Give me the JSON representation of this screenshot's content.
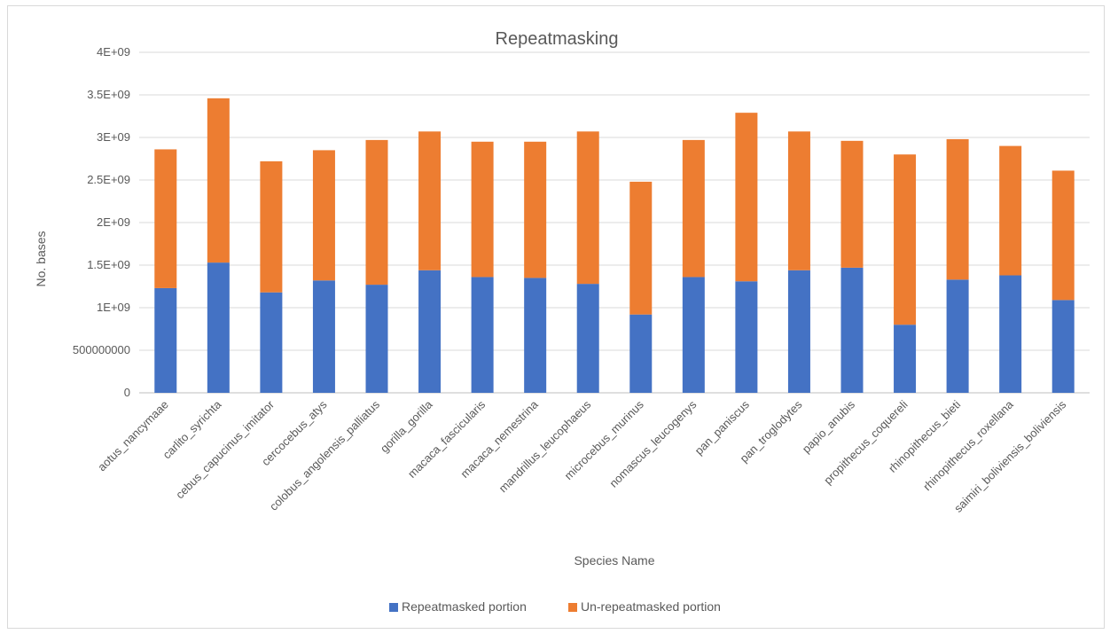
{
  "chart_data": {
    "type": "bar",
    "stacked": true,
    "title": "Repeatmasking",
    "xlabel": "Species Name",
    "ylabel": "No. bases",
    "ylim": [
      0,
      4000000000
    ],
    "y_ticks": [
      0,
      500000000,
      1000000000,
      1500000000,
      2000000000,
      2500000000,
      3000000000,
      3500000000,
      4000000000
    ],
    "y_tick_labels": [
      "0",
      "500000000",
      "1E+09",
      "1.5E+09",
      "2E+09",
      "2.5E+09",
      "3E+09",
      "3.5E+09",
      "4E+09"
    ],
    "grid": true,
    "legend_position": "bottom",
    "categories": [
      "aotus_nancymaae",
      "carlito_syrichta",
      "cebus_capucinus_imitator",
      "cercocebus_atys",
      "colobus_angolensis_palliatus",
      "gorilla_gorilla",
      "macaca_fascicularis",
      "macaca_nemestrina",
      "mandrillus_leucophaeus",
      "microcebus_murinus",
      "nomascus_leucogenys",
      "pan_paniscus",
      "pan_troglodytes",
      "papio_anubis",
      "propithecus_coquereli",
      "rhinopithecus_bieti",
      "rhinopithecus_roxellana",
      "saimiri_boliviensis_boliviensis"
    ],
    "series": [
      {
        "name": "Repeatmasked portion",
        "color": "#4472c4",
        "values": [
          1230000000,
          1530000000,
          1180000000,
          1320000000,
          1270000000,
          1440000000,
          1360000000,
          1350000000,
          1280000000,
          920000000,
          1360000000,
          1310000000,
          1440000000,
          1470000000,
          800000000,
          1330000000,
          1380000000,
          1090000000
        ]
      },
      {
        "name": "Un-repeatmasked portion",
        "color": "#ed7d31",
        "values": [
          1630000000,
          1930000000,
          1540000000,
          1530000000,
          1700000000,
          1630000000,
          1590000000,
          1600000000,
          1790000000,
          1560000000,
          1610000000,
          1980000000,
          1630000000,
          1490000000,
          2000000000,
          1650000000,
          1520000000,
          1520000000
        ]
      }
    ]
  }
}
